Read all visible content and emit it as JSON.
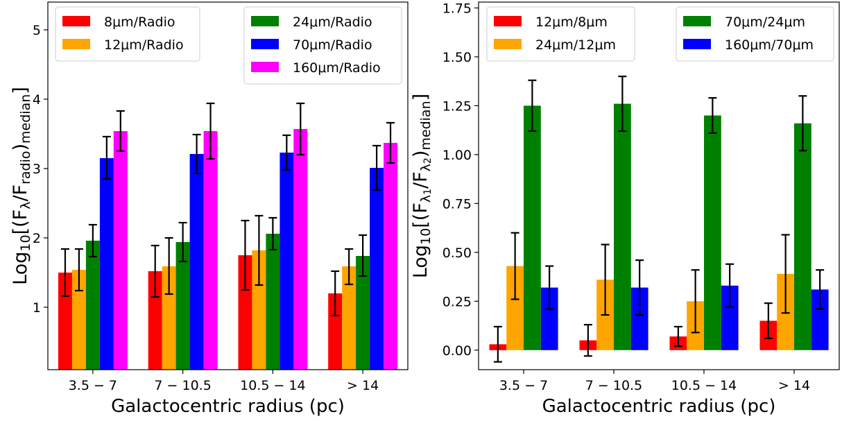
{
  "chart_data": [
    {
      "type": "bar",
      "title": "",
      "xlabel": "Galactocentric radius (pc)",
      "ylabel": {
        "prefix": "Log",
        "log_base": "10",
        "body": "[(F",
        "sub1": "λ",
        "mid": "/F",
        "sub2": "radio",
        "close": ")",
        "sub3": "median",
        "end": "]"
      },
      "categories": [
        "3.5 − 7",
        "7 − 10.5",
        "10.5 − 14",
        "> 14"
      ],
      "ylim": [
        0.1,
        5.4
      ],
      "yticks": [
        1,
        2,
        3,
        4,
        5
      ],
      "ytick_labels": [
        "1",
        "2",
        "3",
        "4",
        "5"
      ],
      "grid": false,
      "legend_placement": "top (two boxes: top-left, top-right)",
      "series": [
        {
          "name": "8μm/Radio",
          "color": "#ff0000",
          "values": [
            1.5,
            1.52,
            1.75,
            1.2
          ],
          "err_low": [
            1.16,
            1.15,
            1.25,
            0.88
          ],
          "err_high": [
            1.84,
            1.89,
            2.25,
            1.52
          ]
        },
        {
          "name": "12μm/Radio",
          "color": "#ffa500",
          "values": [
            1.54,
            1.59,
            1.82,
            1.59
          ],
          "err_low": [
            1.24,
            1.19,
            1.32,
            1.33
          ],
          "err_high": [
            1.84,
            2.0,
            2.32,
            1.84
          ]
        },
        {
          "name": "24μm/Radio",
          "color": "#008000",
          "values": [
            1.96,
            1.94,
            2.06,
            1.74
          ],
          "err_low": [
            1.73,
            1.66,
            1.83,
            1.45
          ],
          "err_high": [
            2.19,
            2.22,
            2.29,
            2.04
          ]
        },
        {
          "name": "70μm/Radio",
          "color": "#0000ff",
          "values": [
            3.15,
            3.21,
            3.23,
            3.01
          ],
          "err_low": [
            2.85,
            2.93,
            2.98,
            2.69
          ],
          "err_high": [
            3.46,
            3.49,
            3.48,
            3.33
          ]
        },
        {
          "name": "160μm/Radio",
          "color": "#ff00ff",
          "values": [
            3.54,
            3.54,
            3.57,
            3.37
          ],
          "err_low": [
            3.25,
            3.14,
            3.2,
            3.08
          ],
          "err_high": [
            3.83,
            3.94,
            3.94,
            3.66
          ]
        }
      ],
      "legend": [
        {
          "group": "left",
          "items": [
            "8μm/Radio",
            "12μm/Radio"
          ]
        },
        {
          "group": "right",
          "items": [
            "24μm/Radio",
            "70μm/Radio",
            "160μm/Radio"
          ]
        }
      ]
    },
    {
      "type": "bar",
      "title": "",
      "xlabel": "Galactocentric radius (pc)",
      "ylabel": {
        "prefix": "Log",
        "log_base": "10",
        "body": "[(F",
        "sub1": "λ",
        "sub1b": "1",
        "mid": "/F",
        "sub2": "λ",
        "sub2b": "2",
        "close": ")",
        "sub3": "median",
        "end": "]"
      },
      "categories": [
        "3.5 − 7",
        "7 − 10.5",
        "10.5 − 14",
        "> 14"
      ],
      "ylim": [
        -0.1,
        1.78
      ],
      "yticks": [
        0,
        0.25,
        0.5,
        0.75,
        1.0,
        1.25,
        1.5,
        1.75
      ],
      "ytick_labels": [
        "0.00",
        "0.25",
        "0.50",
        "0.75",
        "1.00",
        "1.25",
        "1.50",
        "1.75"
      ],
      "grid": false,
      "legend_placement": "top (two boxes: top-left, top-right)",
      "series": [
        {
          "name": "12μm/8μm",
          "color": "#ff0000",
          "values": [
            0.03,
            0.05,
            0.07,
            0.15
          ],
          "err_low": [
            -0.06,
            -0.03,
            0.02,
            0.06
          ],
          "err_high": [
            0.12,
            0.13,
            0.12,
            0.24
          ]
        },
        {
          "name": "24μm/12μm",
          "color": "#ffa500",
          "values": [
            0.43,
            0.36,
            0.25,
            0.39
          ],
          "err_low": [
            0.26,
            0.18,
            0.09,
            0.19
          ],
          "err_high": [
            0.6,
            0.54,
            0.41,
            0.59
          ]
        },
        {
          "name": "70μm/24μm",
          "color": "#008000",
          "values": [
            1.25,
            1.26,
            1.2,
            1.16
          ],
          "err_low": [
            1.12,
            1.12,
            1.11,
            1.02
          ],
          "err_high": [
            1.38,
            1.4,
            1.29,
            1.3
          ]
        },
        {
          "name": "160μm/70μm",
          "color": "#0000ff",
          "values": [
            0.32,
            0.32,
            0.33,
            0.31
          ],
          "err_low": [
            0.21,
            0.18,
            0.22,
            0.21
          ],
          "err_high": [
            0.43,
            0.46,
            0.44,
            0.41
          ]
        }
      ],
      "legend": [
        {
          "group": "left",
          "items": [
            "12μm/8μm",
            "24μm/12μm"
          ]
        },
        {
          "group": "right",
          "items": [
            "70μm/24μm",
            "160μm/70μm"
          ]
        }
      ]
    }
  ]
}
